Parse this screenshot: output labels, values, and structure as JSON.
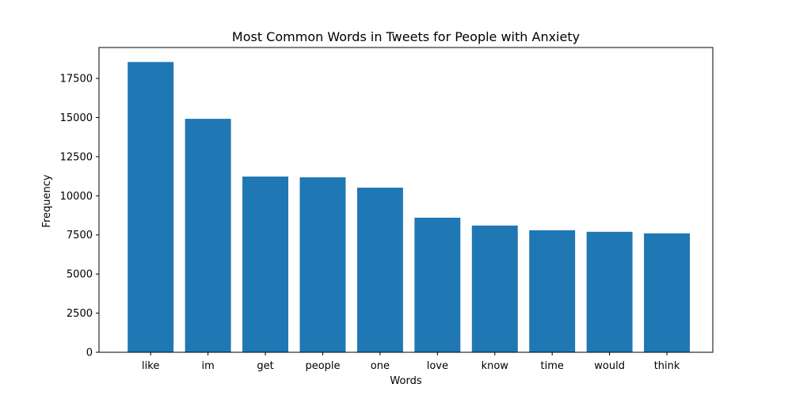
{
  "chart_data": {
    "type": "bar",
    "title": "Most Common Words in Tweets for People with Anxiety",
    "xlabel": "Words",
    "ylabel": "Frequency",
    "categories": [
      "like",
      "im",
      "get",
      "people",
      "one",
      "love",
      "know",
      "time",
      "would",
      "think"
    ],
    "values": [
      18550,
      14920,
      11230,
      11180,
      10520,
      8600,
      8100,
      7800,
      7700,
      7600
    ],
    "ylim": [
      0,
      19477
    ],
    "yticks": [
      0,
      2500,
      5000,
      7500,
      10000,
      12500,
      15000,
      17500
    ],
    "grid": false,
    "legend": "none",
    "bar_color": "#1f77b4"
  }
}
